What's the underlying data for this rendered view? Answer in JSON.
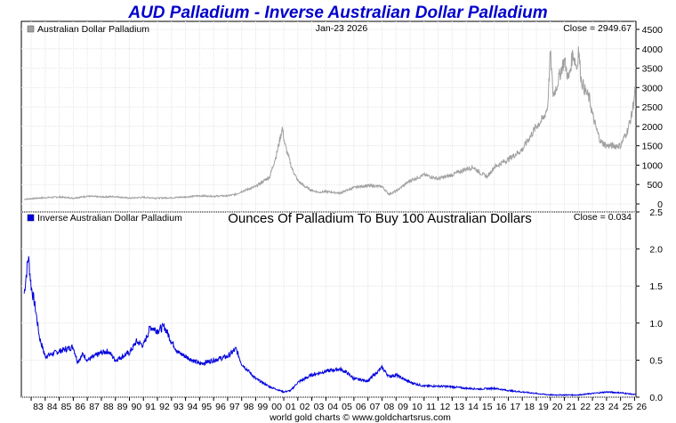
{
  "chart_data": [
    {
      "type": "line",
      "title": "AUD Palladium - Inverse Australian Dollar Palladium",
      "title_color": "#0000cc",
      "date": "Jan-23  2026",
      "legend": "Australian Dollar Palladium",
      "close_label": "Close = 2949.67",
      "color": "#a0a0a0",
      "ylim": [
        0,
        4500
      ],
      "yticks": [
        0,
        500,
        1000,
        1500,
        2000,
        2500,
        3000,
        3500,
        4000,
        4500
      ],
      "x": [
        1982.5,
        1983.5,
        1985,
        1986,
        1987,
        1988,
        1989,
        1990,
        1991,
        1992,
        1993,
        1994,
        1995,
        1996,
        1997,
        1997.6,
        1998,
        1999,
        2000,
        2000.5,
        2000.9,
        2001.1,
        2001.6,
        2002,
        2002.5,
        2003,
        2003.5,
        2004,
        2005,
        2006,
        2006.4,
        2007,
        2008,
        2008.5,
        2009,
        2010,
        2011,
        2012,
        2013,
        2014,
        2014.5,
        2015,
        2015.5,
        2016,
        2017,
        2018,
        2019,
        2019.5,
        2019.8,
        2020,
        2020.2,
        2020.5,
        2020.8,
        2021,
        2021.3,
        2021.6,
        2021.9,
        2022,
        2022.2,
        2022.5,
        2022.8,
        2023,
        2023.3,
        2023.6,
        2024,
        2024.5,
        2025,
        2025.5,
        2025.8,
        2026.06
      ],
      "values": [
        120,
        150,
        180,
        150,
        200,
        180,
        190,
        150,
        170,
        150,
        160,
        180,
        210,
        200,
        210,
        250,
        320,
        450,
        700,
        1300,
        1950,
        1500,
        900,
        600,
        450,
        350,
        300,
        320,
        280,
        420,
        450,
        470,
        450,
        250,
        330,
        600,
        750,
        650,
        750,
        900,
        950,
        800,
        700,
        950,
        1150,
        1400,
        2000,
        2200,
        2500,
        3900,
        2800,
        3100,
        3500,
        3700,
        3200,
        3900,
        3500,
        4000,
        3200,
        2900,
        2700,
        2300,
        1900,
        1600,
        1500,
        1500,
        1500,
        1900,
        2300,
        2949.67
      ]
    },
    {
      "type": "line",
      "subtitle": "Ounces Of Palladium To Buy 100 Australian Dollars",
      "legend": "Inverse Australian Dollar Palladium",
      "close_label": "Close = 0.034",
      "color": "#0000dd",
      "ylim": [
        0,
        2.5
      ],
      "yticks": [
        "0.0",
        "0.5",
        "1.0",
        "1.5",
        "2.0",
        "2.5"
      ],
      "x": [
        1982.5,
        1982.8,
        1983,
        1983.3,
        1983.6,
        1984,
        1985,
        1986,
        1986.3,
        1986.7,
        1987,
        1988,
        1988.5,
        1989,
        1990,
        1990.5,
        1991,
        1991.5,
        1992,
        1992.5,
        1993,
        1993.5,
        1994,
        1995,
        1996,
        1997,
        1997.6,
        1998,
        1999,
        2000,
        2001,
        2001.5,
        2002,
        2003,
        2004,
        2005,
        2005.5,
        2006,
        2007,
        2008,
        2008.5,
        2009,
        2010,
        2011,
        2012,
        2013,
        2014,
        2015,
        2016,
        2017,
        2018,
        2019,
        2020,
        2021,
        2022,
        2023,
        2024,
        2025,
        2026.06
      ],
      "values": [
        1.4,
        1.9,
        1.5,
        1.2,
        0.8,
        0.55,
        0.62,
        0.68,
        0.48,
        0.58,
        0.5,
        0.6,
        0.62,
        0.5,
        0.6,
        0.75,
        0.7,
        0.95,
        0.9,
        0.95,
        0.75,
        0.6,
        0.55,
        0.45,
        0.5,
        0.55,
        0.65,
        0.45,
        0.25,
        0.14,
        0.07,
        0.09,
        0.2,
        0.3,
        0.35,
        0.38,
        0.33,
        0.25,
        0.22,
        0.4,
        0.28,
        0.3,
        0.2,
        0.15,
        0.15,
        0.14,
        0.12,
        0.11,
        0.12,
        0.09,
        0.07,
        0.05,
        0.03,
        0.03,
        0.03,
        0.05,
        0.07,
        0.06,
        0.034
      ]
    }
  ],
  "xaxis": {
    "range": [
      1982.3,
      2026.1
    ],
    "first_year": 1983,
    "labels": [
      "83",
      "84",
      "85",
      "86",
      "87",
      "88",
      "89",
      "90",
      "91",
      "92",
      "93",
      "94",
      "95",
      "96",
      "97",
      "98",
      "99",
      "00",
      "01",
      "02",
      "03",
      "04",
      "05",
      "06",
      "07",
      "08",
      "09",
      "10",
      "11",
      "12",
      "13",
      "14",
      "15",
      "16",
      "17",
      "18",
      "19",
      "20",
      "21",
      "22",
      "23",
      "24",
      "25",
      "26"
    ]
  },
  "footer": "world gold charts © www.goldchartsrus.com"
}
